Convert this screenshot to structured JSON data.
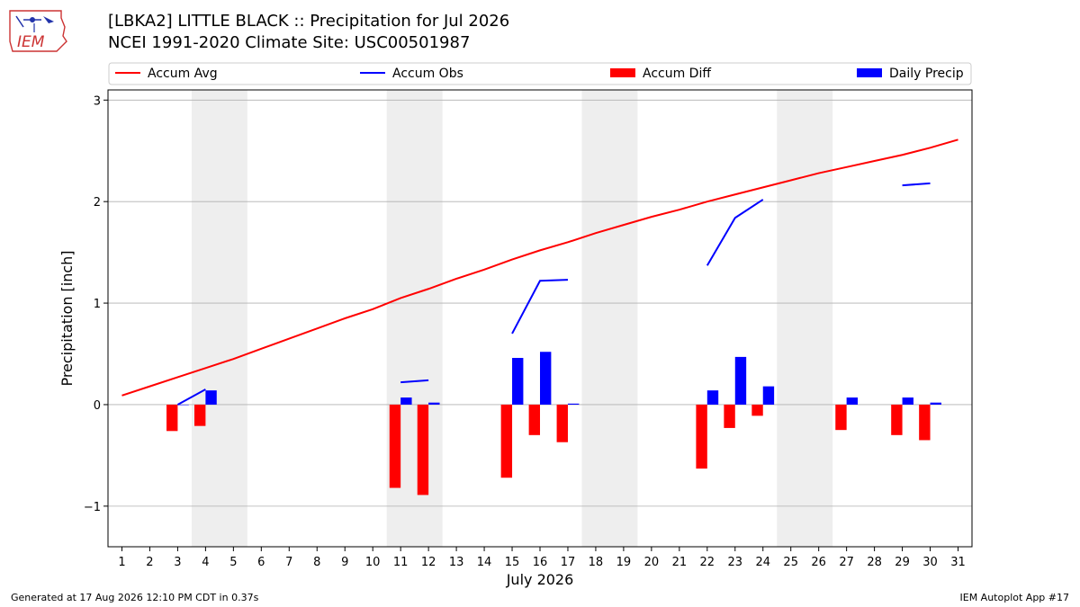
{
  "header": {
    "title_line1": "[LBKA2] LITTLE BLACK :: Precipitation for Jul 2026",
    "title_line2": "NCEI 1991-2020 Climate Site: USC00501987",
    "logo_text": "IEM"
  },
  "footer": {
    "generated": "Generated at 17 Aug 2026 12:10 PM CDT in 0.37s",
    "app": "IEM Autoplot App #17"
  },
  "colors": {
    "accum_avg": "#ff0000",
    "accum_obs": "#0000ff",
    "accum_diff": "#ff0000",
    "daily_precip": "#0000ff",
    "weekend_shade": "#eeeeee",
    "grid": "#b0b0b0",
    "logo": "#cc3333"
  },
  "chart_data": {
    "type": "bar",
    "title": "[LBKA2] LITTLE BLACK :: Precipitation for Jul 2026",
    "subtitle": "NCEI 1991-2020 Climate Site: USC00501987",
    "xlabel": "July 2026",
    "ylabel": "Precipitation [inch]",
    "xlim": [
      0.5,
      31.5
    ],
    "ylim": [
      -1.4,
      3.1
    ],
    "yticks": [
      -1,
      0,
      1,
      2,
      3
    ],
    "ytick_labels": [
      "−1",
      "0",
      "1",
      "2",
      "3"
    ],
    "grid": "horizontal",
    "legend_position": "top",
    "categories": [
      1,
      2,
      3,
      4,
      5,
      6,
      7,
      8,
      9,
      10,
      11,
      12,
      13,
      14,
      15,
      16,
      17,
      18,
      19,
      20,
      21,
      22,
      23,
      24,
      25,
      26,
      27,
      28,
      29,
      30,
      31
    ],
    "shaded_weekends": [
      [
        4,
        5
      ],
      [
        11,
        12
      ],
      [
        18,
        19
      ],
      [
        25,
        26
      ]
    ],
    "series": [
      {
        "name": "Accum Avg",
        "kind": "line",
        "values": [
          0.09,
          0.18,
          0.27,
          0.36,
          0.45,
          0.55,
          0.65,
          0.75,
          0.85,
          0.94,
          1.05,
          1.14,
          1.24,
          1.33,
          1.43,
          1.52,
          1.6,
          1.69,
          1.77,
          1.85,
          1.92,
          2.0,
          2.07,
          2.14,
          2.21,
          2.28,
          2.34,
          2.4,
          2.46,
          2.53,
          2.61
        ]
      },
      {
        "name": "Accum Obs",
        "kind": "line",
        "values": [
          null,
          null,
          0.0,
          0.15,
          null,
          null,
          null,
          null,
          null,
          null,
          0.22,
          0.24,
          null,
          null,
          0.7,
          1.22,
          1.23,
          null,
          null,
          null,
          null,
          1.37,
          1.84,
          2.02,
          null,
          null,
          null,
          null,
          2.16,
          2.18,
          null
        ]
      },
      {
        "name": "Accum Diff",
        "kind": "bar",
        "values": [
          null,
          null,
          -0.26,
          -0.21,
          null,
          null,
          null,
          null,
          null,
          null,
          -0.82,
          -0.89,
          null,
          null,
          -0.72,
          -0.3,
          -0.37,
          null,
          null,
          null,
          null,
          -0.63,
          -0.23,
          -0.11,
          null,
          null,
          -0.25,
          null,
          -0.3,
          -0.35,
          null
        ]
      },
      {
        "name": "Daily Precip",
        "kind": "bar",
        "values": [
          null,
          null,
          0.0,
          0.14,
          null,
          null,
          null,
          null,
          null,
          null,
          0.07,
          0.02,
          null,
          null,
          0.46,
          0.52,
          0.01,
          null,
          null,
          null,
          null,
          0.14,
          0.47,
          0.18,
          null,
          null,
          0.07,
          null,
          0.07,
          0.02,
          null
        ]
      }
    ]
  }
}
